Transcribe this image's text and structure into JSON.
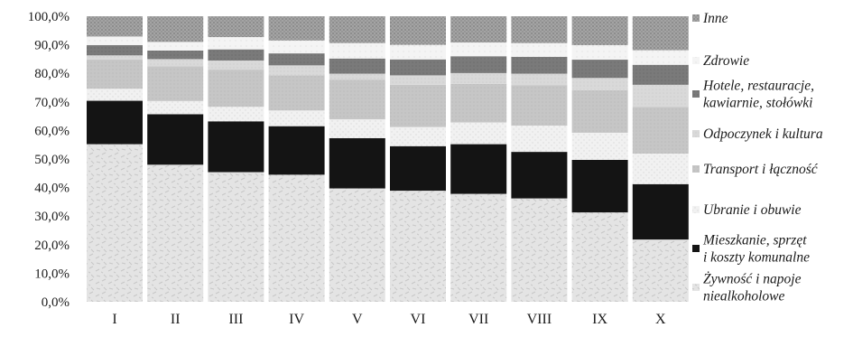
{
  "chart_data": {
    "type": "bar",
    "stacked": true,
    "percent": true,
    "categories": [
      "I",
      "II",
      "III",
      "IV",
      "V",
      "VI",
      "VII",
      "VIII",
      "IX",
      "X"
    ],
    "ylim": [
      0,
      100
    ],
    "ytick_labels": [
      "0,0%",
      "10,0%",
      "20,0%",
      "30,0%",
      "40,0%",
      "50,0%",
      "60,0%",
      "70,0%",
      "80,0%",
      "90,0%",
      "100,0%"
    ],
    "grid": false,
    "legend_position": "right",
    "series": [
      {
        "name": "Żywność i napoje bezalkoholowe",
        "legend_lines": [
          "Żywność i napoje",
          "niealkoholowe"
        ],
        "color": "#e6e6e6",
        "values": [
          55.2,
          48.0,
          45.4,
          44.5,
          39.7,
          38.9,
          37.8,
          36.2,
          31.3,
          21.8
        ]
      },
      {
        "name": "Mieszkanie, sprzęt i koszty komunalne",
        "legend_lines": [
          "Mieszkanie, sprzęt",
          "i koszty komunalne"
        ],
        "color": "#141414",
        "values": [
          15.2,
          17.7,
          17.8,
          17.0,
          17.6,
          15.6,
          17.4,
          16.3,
          18.4,
          19.4
        ]
      },
      {
        "name": "Ubranie i obuwie",
        "legend_lines": [
          "Ubranie i obuwie"
        ],
        "color": "#efefef",
        "values": [
          4.2,
          4.6,
          5.1,
          5.5,
          6.6,
          6.7,
          7.6,
          9.2,
          9.5,
          10.7
        ]
      },
      {
        "name": "Transport i łączność",
        "legend_lines": [
          "Transport i łączność"
        ],
        "color": "#c8c8c8",
        "values": [
          10.3,
          12.2,
          13.0,
          12.3,
          13.8,
          14.8,
          13.5,
          14.2,
          14.9,
          16.4
        ]
      },
      {
        "name": "Odpoczynek i kultura",
        "legend_lines": [
          "Odpoczynek i kultura"
        ],
        "color": "#d6d6d6",
        "values": [
          1.4,
          2.5,
          3.2,
          3.5,
          2.2,
          3.3,
          3.8,
          4.0,
          4.3,
          7.7
        ]
      },
      {
        "name": "Hotele, restauracje, kawiarnie, stołówki",
        "legend_lines": [
          "Hotele, restauracje,",
          "kawiarnie, stołówki"
        ],
        "color": "#7a7a7a",
        "values": [
          3.6,
          3.0,
          3.9,
          4.2,
          5.3,
          5.6,
          5.9,
          5.9,
          6.4,
          7.0
        ]
      },
      {
        "name": "Zdrowie",
        "legend_lines": [
          "Zdrowie"
        ],
        "color": "#f3f3f3",
        "values": [
          3.0,
          3.0,
          4.3,
          4.5,
          5.4,
          5.1,
          4.8,
          4.8,
          5.1,
          5.1
        ]
      },
      {
        "name": "Inne",
        "legend_lines": [
          "Inne"
        ],
        "color": "#9a9a9a",
        "values": [
          7.1,
          9.0,
          7.3,
          8.5,
          9.4,
          10.0,
          9.2,
          9.4,
          10.1,
          11.9
        ]
      }
    ]
  }
}
